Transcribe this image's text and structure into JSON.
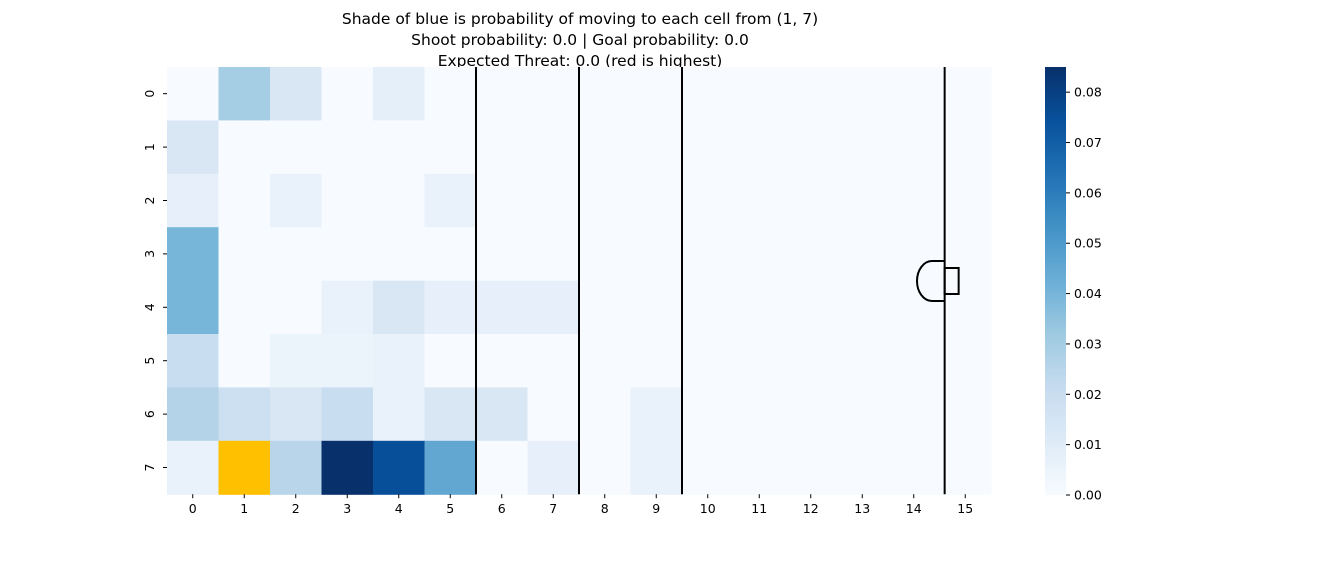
{
  "chart_data": {
    "type": "heatmap",
    "title": [
      "Shade of blue is probability of moving to each cell from (1, 7)",
      "Shoot probability: 0.0 | Goal probability: 0.0",
      "Expected Threat: 0.0 (red is highest)"
    ],
    "x_ticks": [
      "0",
      "1",
      "2",
      "3",
      "4",
      "5",
      "6",
      "7",
      "8",
      "9",
      "10",
      "11",
      "12",
      "13",
      "14",
      "15"
    ],
    "y_ticks": [
      "0",
      "1",
      "2",
      "3",
      "4",
      "5",
      "6",
      "7"
    ],
    "colorbar": {
      "vmin": 0.0,
      "vmax": 0.085,
      "ticks": [
        0.0,
        0.01,
        0.02,
        0.03,
        0.04,
        0.05,
        0.06,
        0.07,
        0.08
      ],
      "tick_labels": [
        "0.00",
        "0.01",
        "0.02",
        "0.03",
        "0.04",
        "0.05",
        "0.06",
        "0.07",
        "0.08"
      ],
      "colormap": "Blues"
    },
    "highlight_cell": {
      "x": 1,
      "y": 7,
      "color": "#ffc000"
    },
    "values": [
      [
        0.0,
        0.03,
        0.013,
        0.0,
        0.008,
        0.0,
        0.0,
        0.0,
        0.0,
        0.0,
        0.0,
        0.0,
        0.0,
        0.0,
        0.0,
        0.0
      ],
      [
        0.013,
        0.0,
        0.0,
        0.0,
        0.0,
        0.0,
        0.0,
        0.0,
        0.0,
        0.0,
        0.0,
        0.0,
        0.0,
        0.0,
        0.0,
        0.0
      ],
      [
        0.007,
        0.0,
        0.006,
        0.0,
        0.0,
        0.006,
        0.0,
        0.0,
        0.0,
        0.0,
        0.0,
        0.0,
        0.0,
        0.0,
        0.0,
        0.0
      ],
      [
        0.04,
        0.0,
        0.0,
        0.0,
        0.0,
        0.0,
        0.0,
        0.0,
        0.0,
        0.0,
        0.0,
        0.0,
        0.0,
        0.0,
        0.0,
        0.0
      ],
      [
        0.04,
        0.0,
        0.0,
        0.006,
        0.013,
        0.007,
        0.007,
        0.007,
        0.0,
        0.0,
        0.0,
        0.0,
        0.0,
        0.0,
        0.0,
        0.0
      ],
      [
        0.02,
        0.0,
        0.005,
        0.005,
        0.006,
        0.0,
        0.0,
        0.0,
        0.0,
        0.0,
        0.0,
        0.0,
        0.0,
        0.0,
        0.0,
        0.0
      ],
      [
        0.026,
        0.018,
        0.013,
        0.02,
        0.006,
        0.013,
        0.013,
        0.0,
        0.0,
        0.006,
        0.0,
        0.0,
        0.0,
        0.0,
        0.0,
        0.0
      ],
      [
        0.006,
        0.0,
        0.025,
        0.085,
        0.075,
        0.045,
        0.0,
        0.007,
        0.0,
        0.006,
        0.0,
        0.0,
        0.0,
        0.0,
        0.0,
        0.0
      ]
    ],
    "vertical_lines_at_x": [
      5.5,
      7.5,
      9.5,
      14.6
    ]
  }
}
